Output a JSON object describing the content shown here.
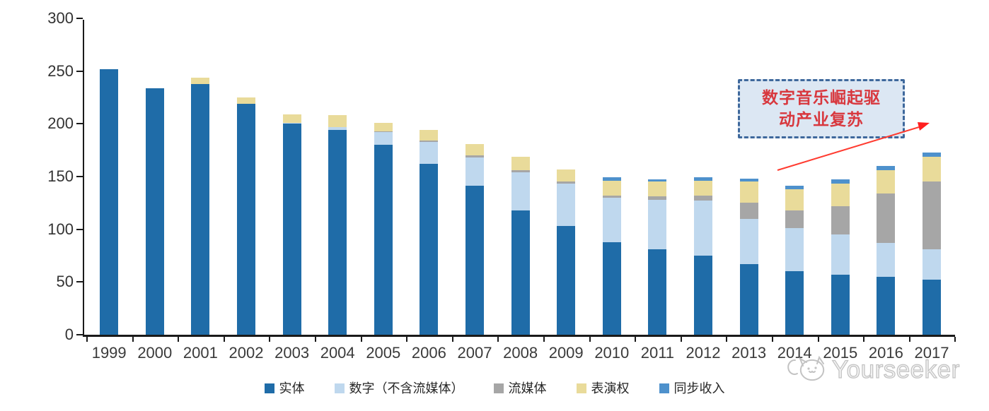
{
  "chart_data": {
    "type": "bar",
    "stacked": true,
    "categories": [
      "1999",
      "2000",
      "2001",
      "2002",
      "2003",
      "2004",
      "2005",
      "2006",
      "2007",
      "2008",
      "2009",
      "2010",
      "2011",
      "2012",
      "2013",
      "2014",
      "2015",
      "2016",
      "2017"
    ],
    "series": [
      {
        "name": "实体",
        "key": "physical",
        "color": "#1F6CA8",
        "values": [
          252,
          234,
          238,
          219,
          200,
          194,
          180,
          162,
          141,
          118,
          103,
          88,
          81,
          75,
          67,
          60,
          57,
          55,
          52
        ]
      },
      {
        "name": "数字（不含流媒体）",
        "key": "digital-excl-streaming",
        "color": "#BFD8EE",
        "values": [
          0,
          0,
          0,
          0,
          1,
          3,
          12,
          21,
          27,
          36,
          40,
          42,
          47,
          52,
          43,
          41,
          38,
          32,
          29
        ]
      },
      {
        "name": "流媒体",
        "key": "streaming",
        "color": "#A6A6A6",
        "values": [
          0,
          0,
          0,
          0,
          0,
          0,
          1,
          1,
          2,
          2,
          2,
          2,
          3,
          5,
          15,
          17,
          27,
          47,
          64
        ]
      },
      {
        "name": "表演权",
        "key": "performance-rights",
        "color": "#E9DB9A",
        "values": [
          0,
          0,
          6,
          6,
          8,
          11,
          8,
          10,
          11,
          13,
          12,
          14,
          14,
          14,
          20,
          20,
          21,
          22,
          24
        ]
      },
      {
        "name": "同步收入",
        "key": "sync-revenue",
        "color": "#4E91CC",
        "values": [
          0,
          0,
          0,
          0,
          0,
          0,
          0,
          0,
          0,
          0,
          0,
          3,
          2,
          3,
          3,
          3,
          4,
          4,
          4
        ]
      }
    ],
    "ylim": [
      0,
      300
    ],
    "yticks": [
      0,
      50,
      100,
      150,
      200,
      250,
      300
    ],
    "grid": false,
    "legend_position": "bottom"
  },
  "annotation": {
    "line1": "数字音乐崛起驱",
    "line2": "动产业复苏",
    "arrow_color": "#ff3b30",
    "box_border_color": "#3e689c",
    "box_fill_color": "#dce7f3",
    "text_color": "#d8383e"
  },
  "watermark": {
    "text": "Yourseeker"
  }
}
